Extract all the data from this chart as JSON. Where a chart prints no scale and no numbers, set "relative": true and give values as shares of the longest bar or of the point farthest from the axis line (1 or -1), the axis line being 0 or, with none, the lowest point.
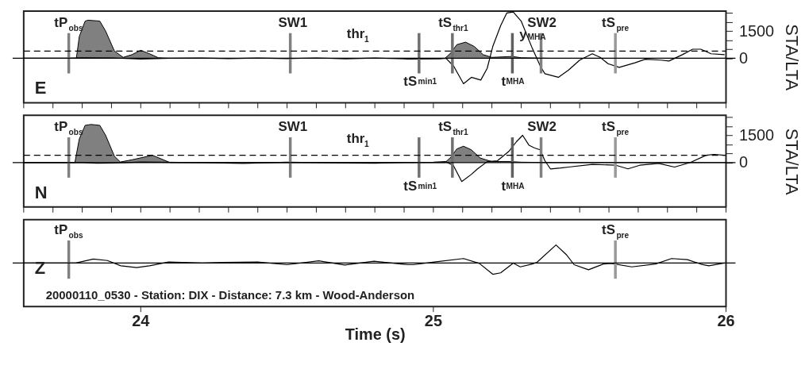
{
  "chart_data": [
    {
      "type": "line",
      "xlim": [
        23.6,
        26
      ],
      "ylim": [
        -2450,
        2600
      ],
      "xticks": [
        {
          "value": 23.6,
          "label": null
        },
        {
          "value": 23.7,
          "label": null
        },
        {
          "value": 23.8,
          "label": null
        },
        {
          "value": 23.9,
          "label": null
        },
        24,
        {
          "value": 24.1,
          "label": null
        },
        {
          "value": 24.2,
          "label": null
        },
        {
          "value": 24.3,
          "label": null
        },
        {
          "value": 24.4,
          "label": null
        },
        {
          "value": 24.5,
          "label": null
        },
        {
          "value": 24.6,
          "label": null
        },
        {
          "value": 24.7,
          "label": null
        },
        {
          "value": 24.8,
          "label": null
        },
        {
          "value": 24.9,
          "label": null
        },
        25,
        {
          "value": 25.1,
          "label": null
        },
        {
          "value": 25.2,
          "label": null
        },
        {
          "value": 25.3,
          "label": null
        },
        {
          "value": 25.4,
          "label": null
        },
        {
          "value": 25.5,
          "label": null
        },
        {
          "value": 25.6,
          "label": null
        },
        {
          "value": 25.7,
          "label": null
        },
        {
          "value": 25.8,
          "label": null
        },
        {
          "value": 25.9,
          "label": null
        },
        26
      ],
      "yticks": [
        0,
        {
          "value": 500,
          "label": null
        },
        {
          "value": 1000,
          "label": null
        },
        1500,
        {
          "value": 2000,
          "label": null
        },
        {
          "value": 2500,
          "label": null
        }
      ],
      "ylabel": "STA/LTA",
      "tick_labels": "y",
      "series": [
        {
          "type": "area",
          "color": "#808080",
          "x": [
            23.6,
            23.78,
            23.79,
            23.81,
            23.82,
            23.86,
            23.88,
            23.91,
            23.94,
            23.97,
            24.0,
            24.03,
            24.06,
            24.1,
            25.04,
            25.06,
            25.08,
            25.11,
            25.14,
            25.17,
            25.2,
            25.27,
            25.3,
            25.4,
            26
          ],
          "values": [
            0,
            0,
            1200,
            2050,
            2100,
            2050,
            1500,
            400,
            50,
            200,
            440,
            250,
            30,
            0,
            0,
            300,
            750,
            890,
            650,
            200,
            50,
            100,
            30,
            0,
            0
          ]
        },
        {
          "type": "line",
          "color": "#000000",
          "x": [
            23.6,
            23.75,
            23.8,
            23.9,
            24.0,
            24.1,
            24.2,
            24.3,
            24.4,
            24.5,
            24.6,
            24.7,
            24.8,
            24.913,
            25.022,
            25.043,
            25.07,
            25.103,
            25.13,
            25.162,
            25.184,
            25.203,
            25.23,
            25.251,
            25.273,
            25.3,
            25.338,
            25.366,
            25.381,
            25.427,
            25.462,
            25.5,
            25.543,
            25.57,
            25.597,
            25.635,
            25.689,
            25.724,
            25.778,
            25.805,
            25.851,
            25.886,
            25.914,
            25.949,
            25.995
          ],
          "values": [
            0,
            0,
            30,
            20,
            -40,
            0,
            20,
            -20,
            10,
            -20,
            20,
            -30,
            10,
            -40,
            -30,
            0,
            -450,
            -1400,
            -1050,
            -1200,
            -550,
            650,
            1800,
            2500,
            2550,
            2050,
            550,
            -450,
            -850,
            -1050,
            -650,
            -100,
            250,
            50,
            -300,
            -500,
            -250,
            -50,
            -100,
            -150,
            200,
            500,
            500,
            250,
            200
          ]
        }
      ],
      "ref_lines": [
        {
          "axis": "y",
          "value": 0,
          "color": "#000000",
          "line_style": "solid"
        },
        {
          "axis": "y",
          "value": 400,
          "label": "thr$_{1}$",
          "color": "#000000",
          "line_style": "dashed"
        },
        {
          "axis": "x",
          "value": 23.754,
          "label": "tP$_{obs}$",
          "color": "#808080"
        },
        {
          "axis": "x",
          "value": 24.511,
          "label": "SW1",
          "color": "#808080"
        },
        {
          "axis": "x",
          "value": 24.951,
          "label": "tS$_{min1}$",
          "color": "#707070"
        },
        {
          "axis": "x",
          "value": 25.065,
          "label": "tS$_{thr1}$",
          "color": "#707070"
        },
        {
          "axis": "x",
          "value": 25.27,
          "label": "t$_{MHA}$",
          "color": "#606060"
        },
        {
          "axis": "x",
          "value": 25.368,
          "label": "SW2",
          "color": "#808080"
        },
        {
          "axis": "x",
          "value": 25.622,
          "label": "tS$_{pre}$",
          "color": "#999999"
        }
      ],
      "annotations": [
        "E",
        {
          "text": "y$_{MHA}$",
          "x": 25.27,
          "y": 1300
        }
      ]
    },
    {
      "type": "line",
      "xlim": [
        23.6,
        26
      ],
      "ylim": [
        -2450,
        2600
      ],
      "xticks": [
        {
          "value": 23.6,
          "label": null
        },
        {
          "value": 23.7,
          "label": null
        },
        {
          "value": 23.8,
          "label": null
        },
        {
          "value": 23.9,
          "label": null
        },
        24,
        {
          "value": 24.1,
          "label": null
        },
        {
          "value": 24.2,
          "label": null
        },
        {
          "value": 24.3,
          "label": null
        },
        {
          "value": 24.4,
          "label": null
        },
        {
          "value": 24.5,
          "label": null
        },
        {
          "value": 24.6,
          "label": null
        },
        {
          "value": 24.7,
          "label": null
        },
        {
          "value": 24.8,
          "label": null
        },
        {
          "value": 24.9,
          "label": null
        },
        25,
        {
          "value": 25.1,
          "label": null
        },
        {
          "value": 25.2,
          "label": null
        },
        {
          "value": 25.3,
          "label": null
        },
        {
          "value": 25.4,
          "label": null
        },
        {
          "value": 25.5,
          "label": null
        },
        {
          "value": 25.6,
          "label": null
        },
        {
          "value": 25.7,
          "label": null
        },
        {
          "value": 25.8,
          "label": null
        },
        {
          "value": 25.9,
          "label": null
        },
        26
      ],
      "yticks": [
        0,
        {
          "value": 500,
          "label": null
        },
        {
          "value": 1000,
          "label": null
        },
        1500,
        {
          "value": 2000,
          "label": null
        },
        {
          "value": 2500,
          "label": null
        }
      ],
      "ylabel": "STA/LTA",
      "tick_labels": "y",
      "series": [
        {
          "type": "area",
          "color": "#808080",
          "x": [
            23.6,
            23.775,
            23.79,
            23.81,
            23.83,
            23.86,
            23.88,
            23.91,
            23.93,
            23.97,
            24.04,
            24.07,
            24.1,
            25.04,
            25.06,
            25.08,
            25.103,
            25.13,
            25.16,
            25.2,
            25.25,
            25.3,
            25.4,
            26
          ],
          "values": [
            0,
            0,
            1300,
            2050,
            2100,
            2050,
            1500,
            350,
            30,
            150,
            400,
            200,
            0,
            0,
            300,
            750,
            900,
            700,
            250,
            50,
            60,
            20,
            0,
            0
          ]
        },
        {
          "type": "line",
          "color": "#000000",
          "x": [
            23.6,
            23.8,
            23.85,
            23.9,
            24.0,
            24.2,
            24.35,
            24.5,
            24.6,
            24.7,
            24.8,
            24.9,
            25.0,
            25.041,
            25.068,
            25.097,
            25.13,
            25.151,
            25.184,
            25.219,
            25.257,
            25.284,
            25.305,
            25.327,
            25.346,
            25.365,
            25.381,
            25.4,
            25.435,
            25.462,
            25.543,
            25.624,
            25.665,
            25.705,
            25.77,
            25.824,
            25.878,
            25.932,
            25.959,
            25.995
          ],
          "values": [
            0,
            0,
            -40,
            -30,
            30,
            0,
            -50,
            20,
            0,
            -30,
            -40,
            10,
            20,
            50,
            -150,
            -1050,
            -650,
            -350,
            50,
            100,
            600,
            1150,
            1500,
            950,
            800,
            700,
            100,
            -350,
            -300,
            -250,
            -100,
            -150,
            -350,
            -150,
            -50,
            -250,
            0,
            400,
            450,
            400
          ]
        }
      ],
      "ref_lines": [
        {
          "axis": "y",
          "value": 0,
          "color": "#000000",
          "line_style": "solid"
        },
        {
          "axis": "y",
          "value": 400,
          "label": "thr$_{1}$",
          "color": "#000000",
          "line_style": "dashed"
        },
        {
          "axis": "x",
          "value": 23.754,
          "label": "tP$_{obs}$",
          "color": "#808080"
        },
        {
          "axis": "x",
          "value": 24.511,
          "label": "SW1",
          "color": "#808080"
        },
        {
          "axis": "x",
          "value": 24.951,
          "label": "tS$_{min1}$",
          "color": "#707070"
        },
        {
          "axis": "x",
          "value": 25.065,
          "label": "tS$_{thr1}$",
          "color": "#707070"
        },
        {
          "axis": "x",
          "value": 25.27,
          "label": "t$_{MHA}$",
          "color": "#606060"
        },
        {
          "axis": "x",
          "value": 25.368,
          "label": "SW2",
          "color": "#808080"
        },
        {
          "axis": "x",
          "value": 25.622,
          "label": "tS$_{pre}$",
          "color": "#999999"
        }
      ],
      "annotations": [
        "N"
      ]
    },
    {
      "type": "line",
      "relative": true,
      "xlim": [
        23.6,
        26
      ],
      "xticks": [
        24,
        25,
        26
      ],
      "xlabel": "Time (s)",
      "tick_labels": "x",
      "series": [
        {
          "type": "line",
          "color": "#000000",
          "x": [
            23.6,
            23.778,
            23.838,
            23.886,
            23.932,
            23.986,
            24.03,
            24.095,
            24.211,
            24.284,
            24.4,
            24.5,
            24.608,
            24.697,
            24.797,
            24.914,
            24.932,
            25.003,
            25.103,
            25.157,
            25.203,
            25.23,
            25.273,
            25.297,
            25.338,
            25.354,
            25.419,
            25.454,
            25.481,
            25.53,
            25.581,
            25.608,
            25.678,
            25.759,
            25.814,
            25.868,
            25.914,
            25.941,
            25.995
          ],
          "values": [
            0,
            0,
            0.22,
            0.14,
            -0.15,
            -0.25,
            -0.15,
            0.06,
            0,
            0.04,
            0.06,
            -0.09,
            0.12,
            -0.11,
            0.1,
            -0.09,
            -0.09,
            0.06,
            0.25,
            -0.02,
            -0.62,
            -0.54,
            0,
            -0.21,
            -0.05,
            0.04,
            1,
            0.47,
            -0.09,
            -0.37,
            -0.05,
            -0.02,
            -0.21,
            -0.05,
            0.25,
            0.19,
            -0.06,
            -0.15,
            0
          ]
        }
      ],
      "ref_lines": [
        {
          "axis": "y",
          "value": 0,
          "color": "#000000",
          "line_style": "solid"
        },
        {
          "axis": "x",
          "value": 23.754,
          "label": "tP$_{obs}$",
          "color": "#808080"
        },
        {
          "axis": "x",
          "value": 25.622,
          "label": "tS$_{pre}$",
          "color": "#999999"
        }
      ],
      "annotations": [
        "Z",
        "20000110_0530 - Station: DIX - Distance: 7.3 km - Wood-Anderson"
      ]
    }
  ]
}
